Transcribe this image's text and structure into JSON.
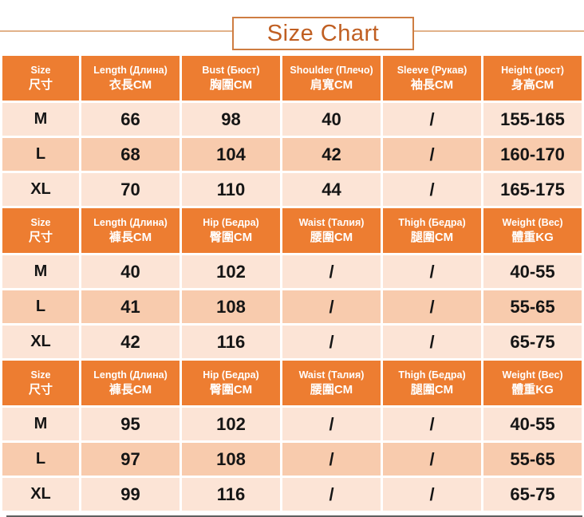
{
  "title": "Size Chart",
  "colors": {
    "header-bg": "#ED7D31",
    "row-light": "#FCE4D6",
    "row-dark": "#F8CBAD",
    "title-color": "#C05F22",
    "title-border": "#CE7D42",
    "rule-color": "#E2B28A",
    "text-color": "#151515",
    "bottom-bar": "#5F5F5F"
  },
  "tables": [
    {
      "headers": [
        {
          "en": "Size",
          "cn": "尺寸"
        },
        {
          "en": "Length (Длина)",
          "cn": "衣長CM"
        },
        {
          "en": "Bust (Бюст)",
          "cn": "胸圍CM"
        },
        {
          "en": "Shoulder (Плечо)",
          "cn": "肩寬CM"
        },
        {
          "en": "Sleeve (Рукав)",
          "cn": "袖長CM"
        },
        {
          "en": "Height (рост)",
          "cn": "身高CM"
        }
      ],
      "rows": [
        [
          "M",
          "66",
          "98",
          "40",
          "/",
          "155-165"
        ],
        [
          "L",
          "68",
          "104",
          "42",
          "/",
          "160-170"
        ],
        [
          "XL",
          "70",
          "110",
          "44",
          "/",
          "165-175"
        ]
      ]
    },
    {
      "headers": [
        {
          "en": "Size",
          "cn": "尺寸"
        },
        {
          "en": "Length (Длина)",
          "cn": "褲長CM"
        },
        {
          "en": "Hip (Бедра)",
          "cn": "臀圍CM"
        },
        {
          "en": "Waist (Талия)",
          "cn": "腰圍CM"
        },
        {
          "en": "Thigh (Бедра)",
          "cn": "腿圍CM"
        },
        {
          "en": "Weight (Вес)",
          "cn": "體重KG"
        }
      ],
      "rows": [
        [
          "M",
          "40",
          "102",
          "/",
          "/",
          "40-55"
        ],
        [
          "L",
          "41",
          "108",
          "/",
          "/",
          "55-65"
        ],
        [
          "XL",
          "42",
          "116",
          "/",
          "/",
          "65-75"
        ]
      ]
    },
    {
      "headers": [
        {
          "en": "Size",
          "cn": "尺寸"
        },
        {
          "en": "Length (Длина)",
          "cn": "褲長CM"
        },
        {
          "en": "Hip (Бедра)",
          "cn": "臀圍CM"
        },
        {
          "en": "Waist (Талия)",
          "cn": "腰圍CM"
        },
        {
          "en": "Thigh (Бедра)",
          "cn": "腿圍CM"
        },
        {
          "en": "Weight (Вес)",
          "cn": "體重KG"
        }
      ],
      "rows": [
        [
          "M",
          "95",
          "102",
          "/",
          "/",
          "40-55"
        ],
        [
          "L",
          "97",
          "108",
          "/",
          "/",
          "55-65"
        ],
        [
          "XL",
          "99",
          "116",
          "/",
          "/",
          "65-75"
        ]
      ]
    }
  ]
}
